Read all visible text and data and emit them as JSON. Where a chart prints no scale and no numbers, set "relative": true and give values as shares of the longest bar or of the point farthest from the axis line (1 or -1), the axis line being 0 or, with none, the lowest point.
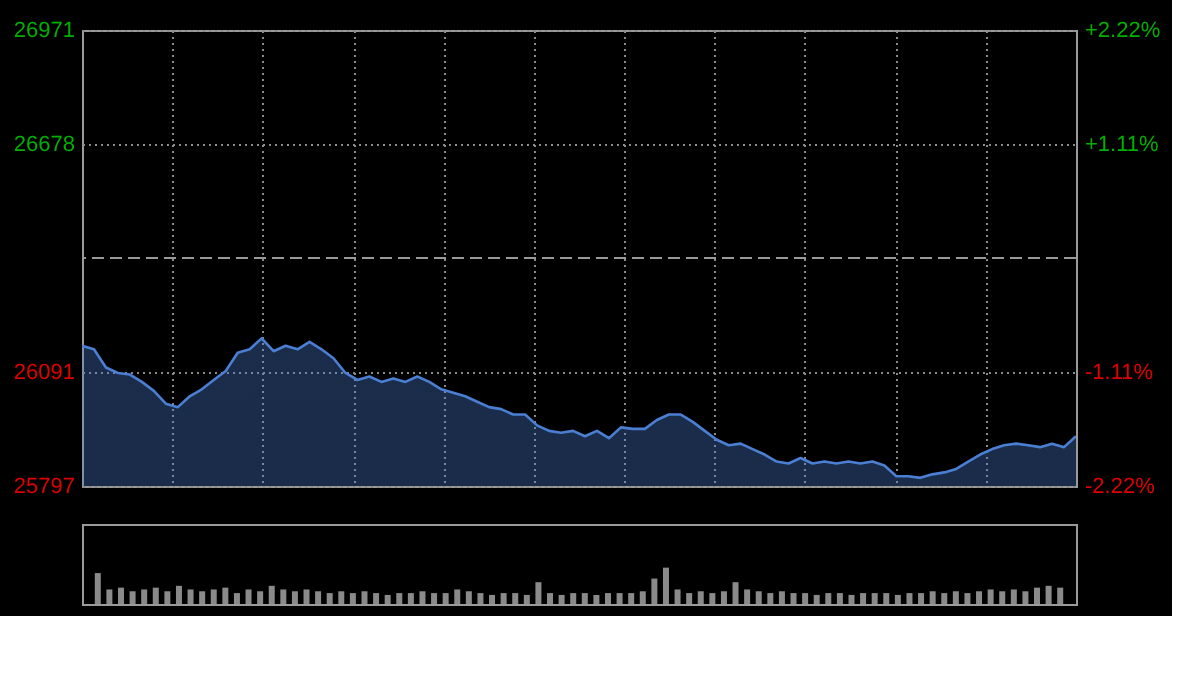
{
  "chart_data": [
    {
      "type": "area",
      "categories": [
        null,
        null,
        null,
        null,
        null,
        null,
        null,
        null,
        null,
        null,
        null,
        null,
        null,
        null,
        null,
        null,
        null,
        null,
        null,
        null,
        null,
        null,
        null,
        null,
        null,
        null,
        null,
        null,
        null,
        null,
        null,
        null,
        null,
        null,
        null,
        null,
        null,
        null,
        null,
        null,
        null,
        null,
        null,
        null,
        null,
        null,
        null,
        null,
        null,
        null,
        null,
        null,
        null,
        null,
        null,
        null,
        null,
        null,
        null,
        null,
        null,
        null,
        null,
        null,
        null,
        null,
        null,
        null,
        null,
        null,
        null,
        null,
        null,
        null,
        null,
        null,
        null,
        null,
        null,
        null,
        null,
        null,
        null,
        null
      ],
      "series": [
        {
          "color": "#4a7fd4",
          "values": [
            26158,
            26149,
            26102,
            26088,
            26084,
            26065,
            26042,
            26009,
            26000,
            26028,
            26046,
            26070,
            26093,
            26140,
            26149,
            26177,
            26144,
            26158,
            26149,
            26168,
            26149,
            26126,
            26088,
            26070,
            26079,
            26065,
            26074,
            26065,
            26079,
            26065,
            26046,
            26037,
            26028,
            26014,
            26000,
            25995,
            25981,
            25981,
            25953,
            25939,
            25934,
            25939,
            25925,
            25939,
            25920,
            25948,
            25944,
            25944,
            25967,
            25981,
            25981,
            25962,
            25939,
            25916,
            25902,
            25906,
            25892,
            25878,
            25860,
            25855,
            25869,
            25855,
            25860,
            25855,
            25860,
            25855,
            25860,
            25850,
            25822,
            25822,
            25818,
            25827,
            25832,
            25841,
            25860,
            25878,
            25892,
            25902,
            25906,
            25902,
            25897,
            25906,
            25897,
            25925
          ]
        }
      ],
      "ylim": [
        25797,
        26971
      ],
      "yticks": [
        25797,
        26091,
        26678,
        26971
      ],
      "y2lim": [
        -2.22,
        2.22
      ],
      "y2ticks": [
        {
          "value": 2.22,
          "label": "+2.22%"
        },
        {
          "value": 1.11,
          "label": "+1.11%"
        },
        {
          "value": -1.11,
          "label": "-1.11%"
        },
        {
          "value": -2.22,
          "label": "-2.22%"
        }
      ],
      "ref_lines": [
        {
          "axis": "y",
          "value": 26384,
          "label": null,
          "line_style": "dashed",
          "color": "#9a9a9a"
        }
      ],
      "grid": true,
      "tick_labels": "y"
    },
    {
      "type": "bar",
      "relative": true,
      "tick_labels": false,
      "categories": [
        null,
        null,
        null,
        null,
        null,
        null,
        null,
        null,
        null,
        null,
        null,
        null,
        null,
        null,
        null,
        null,
        null,
        null,
        null,
        null,
        null,
        null,
        null,
        null,
        null,
        null,
        null,
        null,
        null,
        null,
        null,
        null,
        null,
        null,
        null,
        null,
        null,
        null,
        null,
        null,
        null,
        null,
        null,
        null,
        null,
        null,
        null,
        null,
        null,
        null,
        null,
        null,
        null,
        null,
        null,
        null,
        null,
        null,
        null,
        null,
        null,
        null,
        null,
        null,
        null,
        null,
        null,
        null,
        null,
        null,
        null,
        null,
        null,
        null,
        null,
        null,
        null,
        null,
        null,
        null,
        null,
        null,
        null,
        null
      ],
      "series": [
        {
          "color": "#8a8a8a",
          "values": [
            0.85,
            0.4,
            0.45,
            0.35,
            0.4,
            0.45,
            0.35,
            0.5,
            0.4,
            0.35,
            0.4,
            0.45,
            0.3,
            0.4,
            0.35,
            0.5,
            0.4,
            0.35,
            0.4,
            0.35,
            0.3,
            0.35,
            0.3,
            0.35,
            0.3,
            0.25,
            0.3,
            0.3,
            0.35,
            0.3,
            0.3,
            0.4,
            0.35,
            0.3,
            0.25,
            0.3,
            0.3,
            0.25,
            0.6,
            0.3,
            0.25,
            0.3,
            0.3,
            0.25,
            0.3,
            0.3,
            0.3,
            0.35,
            0.7,
            1.0,
            0.4,
            0.3,
            0.35,
            0.3,
            0.35,
            0.6,
            0.4,
            0.35,
            0.3,
            0.35,
            0.3,
            0.3,
            0.25,
            0.3,
            0.3,
            0.25,
            0.3,
            0.3,
            0.3,
            0.25,
            0.3,
            0.3,
            0.35,
            0.3,
            0.35,
            0.3,
            0.35,
            0.4,
            0.35,
            0.4,
            0.35,
            0.45,
            0.5,
            0.45
          ]
        }
      ]
    }
  ]
}
